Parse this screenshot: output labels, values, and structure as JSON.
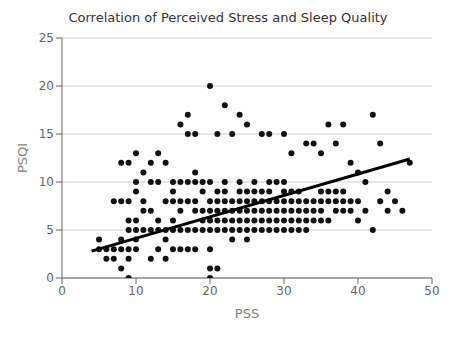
{
  "chart_data": {
    "type": "scatter",
    "title": "Correlation of Perceived Stress and Sleep Quality",
    "xlabel": "PSS",
    "ylabel": "PSQI",
    "xlim": [
      0,
      50
    ],
    "ylim": [
      0,
      25
    ],
    "xticks": [
      0,
      10,
      20,
      30,
      40,
      50
    ],
    "yticks": [
      0,
      5,
      10,
      15,
      20,
      25
    ],
    "grid": "y",
    "series": [
      {
        "type": "scatter",
        "color": "#111111",
        "x": [
          5,
          5,
          6,
          6,
          7,
          7,
          7,
          8,
          8,
          8,
          8,
          8,
          9,
          9,
          9,
          9,
          9,
          9,
          9,
          10,
          10,
          10,
          10,
          10,
          10,
          10,
          11,
          11,
          11,
          11,
          12,
          12,
          12,
          12,
          12,
          13,
          13,
          13,
          13,
          13,
          14,
          14,
          14,
          14,
          14,
          15,
          15,
          15,
          15,
          15,
          15,
          16,
          16,
          16,
          16,
          16,
          16,
          17,
          17,
          17,
          17,
          17,
          17,
          18,
          18,
          18,
          18,
          18,
          18,
          18,
          19,
          19,
          19,
          19,
          19,
          20,
          20,
          20,
          20,
          20,
          20,
          20,
          20,
          20,
          21,
          21,
          21,
          21,
          21,
          21,
          21,
          22,
          22,
          22,
          22,
          22,
          22,
          22,
          23,
          23,
          23,
          23,
          23,
          23,
          24,
          24,
          24,
          24,
          24,
          24,
          24,
          25,
          25,
          25,
          25,
          25,
          25,
          25,
          26,
          26,
          26,
          26,
          26,
          26,
          27,
          27,
          27,
          27,
          27,
          27,
          28,
          28,
          28,
          28,
          28,
          28,
          28,
          29,
          29,
          29,
          29,
          29,
          30,
          30,
          30,
          30,
          30,
          30,
          30,
          31,
          31,
          31,
          31,
          31,
          31,
          32,
          32,
          32,
          32,
          32,
          33,
          33,
          33,
          33,
          33,
          34,
          34,
          34,
          34,
          35,
          35,
          35,
          35,
          35,
          36,
          36,
          36,
          36,
          37,
          37,
          37,
          37,
          38,
          38,
          38,
          38,
          39,
          39,
          39,
          40,
          40,
          40,
          41,
          41,
          42,
          42,
          43,
          43,
          44,
          44,
          45,
          46,
          47
        ],
        "values": [
          3,
          4,
          2,
          3,
          2,
          3,
          8,
          1,
          3,
          4,
          8,
          12,
          0,
          2,
          3,
          5,
          6,
          8,
          12,
          3,
          4,
          5,
          6,
          9,
          10,
          13,
          5,
          7,
          8,
          11,
          2,
          5,
          7,
          10,
          12,
          3,
          5,
          6,
          10,
          13,
          2,
          4,
          5,
          8,
          12,
          3,
          5,
          6,
          8,
          9,
          10,
          3,
          5,
          7,
          8,
          10,
          16,
          3,
          5,
          8,
          10,
          15,
          17,
          3,
          5,
          7,
          8,
          10,
          11,
          15,
          5,
          6,
          7,
          9,
          10,
          0,
          1,
          3,
          5,
          6,
          7,
          8,
          10,
          20,
          1,
          5,
          6,
          7,
          8,
          9,
          15,
          5,
          6,
          7,
          8,
          9,
          10,
          18,
          4,
          5,
          6,
          7,
          8,
          15,
          5,
          6,
          7,
          8,
          9,
          10,
          17,
          4,
          5,
          6,
          7,
          8,
          9,
          16,
          5,
          6,
          7,
          8,
          9,
          10,
          5,
          6,
          7,
          8,
          9,
          15,
          5,
          6,
          7,
          8,
          9,
          10,
          15,
          5,
          6,
          7,
          8,
          10,
          5,
          6,
          7,
          8,
          9,
          10,
          15,
          5,
          6,
          7,
          8,
          9,
          13,
          5,
          6,
          7,
          8,
          9,
          5,
          6,
          7,
          8,
          14,
          6,
          7,
          8,
          14,
          6,
          7,
          8,
          9,
          13,
          6,
          8,
          9,
          16,
          7,
          8,
          9,
          14,
          7,
          8,
          9,
          16,
          7,
          8,
          12,
          6,
          8,
          11,
          7,
          10,
          5,
          17,
          8,
          14,
          7,
          9,
          8,
          7,
          12
        ]
      },
      {
        "type": "line",
        "color": "#000000",
        "x": [
          4,
          47
        ],
        "values": [
          2.8,
          12.4
        ]
      }
    ]
  }
}
